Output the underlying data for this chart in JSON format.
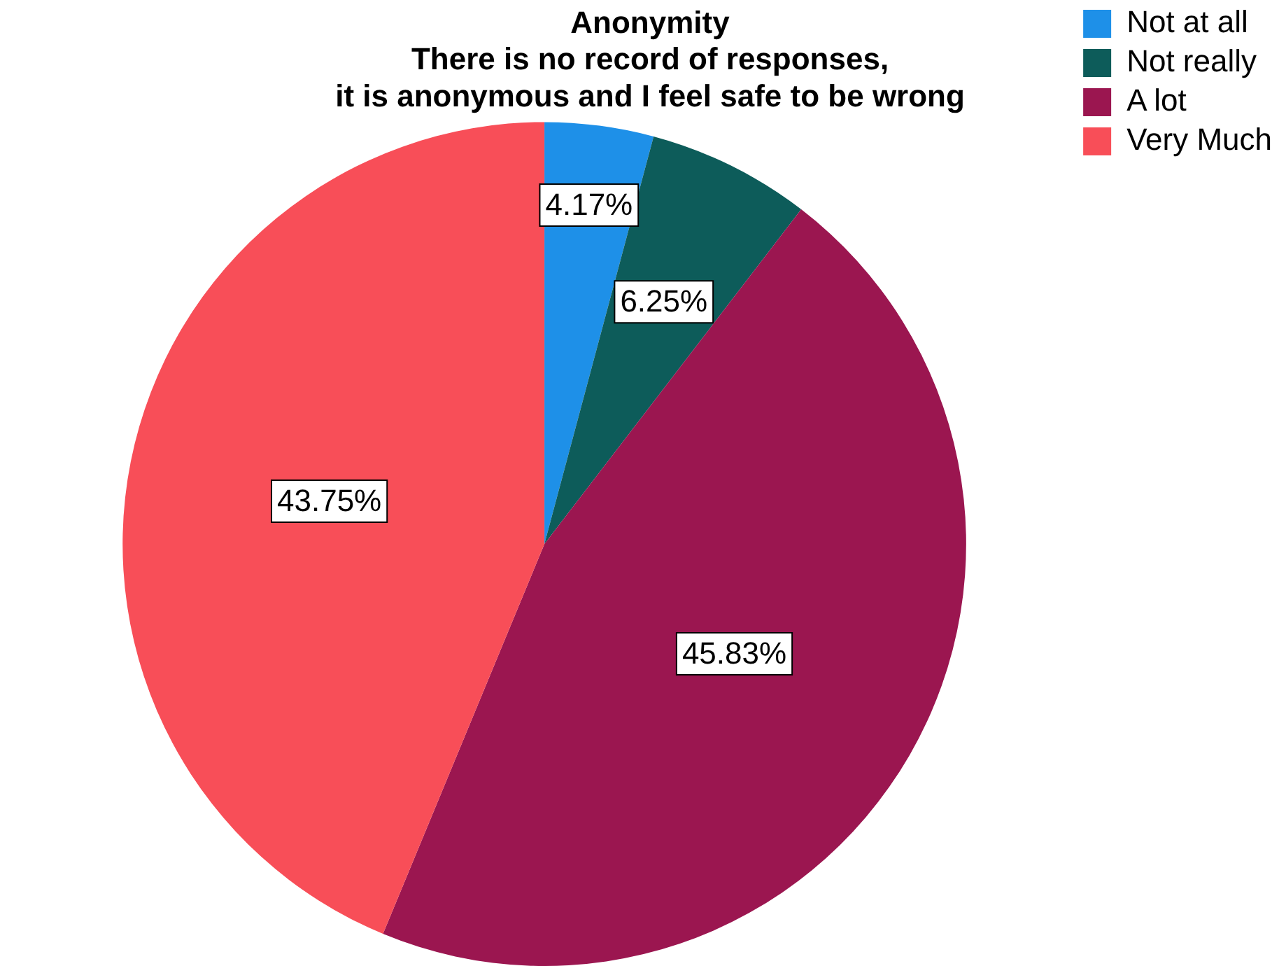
{
  "chart_data": {
    "type": "pie",
    "title": "Anonymity\nThere is no record of responses,\nit is anonymous and I feel safe to be wrong",
    "categories": [
      "Not at all",
      "Not really",
      "A lot",
      "Very Much"
    ],
    "values": [
      4.17,
      6.25,
      45.83,
      43.75
    ],
    "value_labels": [
      "4.17%",
      "6.25%",
      "45.83%",
      "43.75%"
    ],
    "colors": [
      "#1e90e8",
      "#0d5c5a",
      "#9b1650",
      "#f84e58"
    ],
    "legend": "top right"
  }
}
